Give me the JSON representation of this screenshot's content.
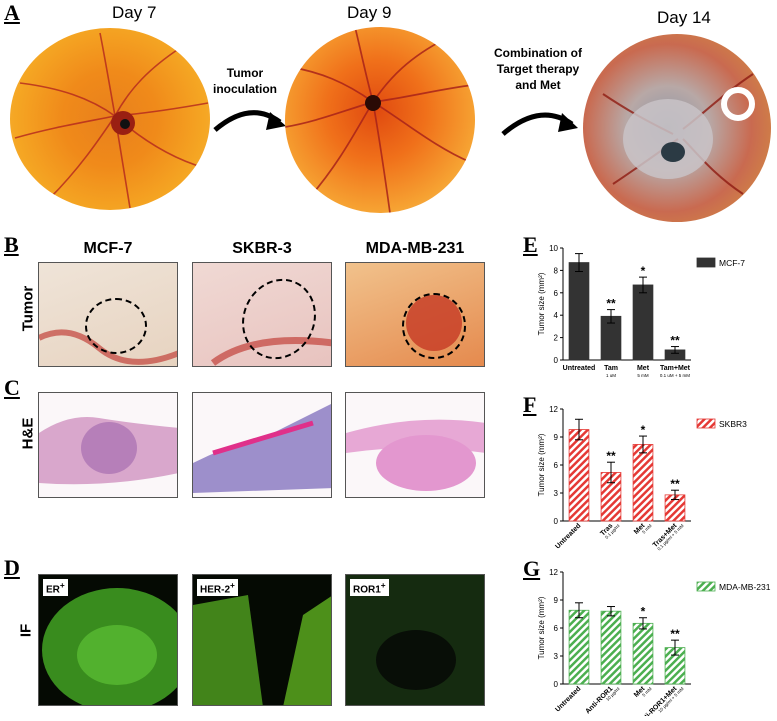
{
  "panels": {
    "A": "A",
    "B": "B",
    "C": "C",
    "D": "D",
    "E": "E",
    "F": "F",
    "G": "G"
  },
  "timeline": {
    "day7": "Day 7",
    "day9": "Day 9",
    "day14": "Day 14",
    "step1": [
      "Tumor",
      "inoculation"
    ],
    "step2": [
      "Combination of",
      "Target therapy",
      "and Met"
    ]
  },
  "grid": {
    "columns": [
      "MCF-7",
      "SKBR-3",
      "MDA-MB-231"
    ],
    "rows": [
      "Tumor",
      "H&E",
      "IF"
    ],
    "if_labels": [
      "ER",
      "HER-2",
      "ROR1"
    ],
    "if_sup": "+"
  },
  "chart_data": [
    {
      "type": "bar",
      "panel": "E",
      "ylabel": "Tumor size (mm²)",
      "ylim": [
        0,
        10
      ],
      "yticks": [
        0,
        2,
        4,
        6,
        8,
        10
      ],
      "categories": [
        "Untreated",
        "Tam",
        "Met",
        "Tam+Met"
      ],
      "sublabels": [
        "",
        "1 uM",
        "5 mM",
        "0.1 uM + 5 mM"
      ],
      "series": [
        {
          "name": "MCF-7",
          "values": [
            8.7,
            3.9,
            6.7,
            0.9
          ],
          "errors": [
            0.8,
            0.6,
            0.7,
            0.3
          ]
        }
      ],
      "significance": [
        "",
        "**",
        "*",
        "**"
      ],
      "color": "#333333",
      "legend": "top-right"
    },
    {
      "type": "bar",
      "panel": "F",
      "ylabel": "Tumor size (mm²)",
      "ylim": [
        0,
        12
      ],
      "yticks": [
        0,
        3,
        6,
        9,
        12
      ],
      "categories": [
        "Untreated",
        "Tras",
        "Met",
        "Tras+Met"
      ],
      "sublabels": [
        "",
        "0.1 µg/ml",
        "5 mM",
        "0.1 µg/ml + 5 mM"
      ],
      "series": [
        {
          "name": "SKBR3",
          "values": [
            9.8,
            5.2,
            8.2,
            2.8
          ],
          "errors": [
            1.1,
            1.1,
            0.9,
            0.5
          ]
        }
      ],
      "significance": [
        "",
        "**",
        "*",
        "**"
      ],
      "color": "#e53935",
      "legend": "top-right"
    },
    {
      "type": "bar",
      "panel": "G",
      "ylabel": "Tumor size (mm²)",
      "ylim": [
        0,
        12
      ],
      "yticks": [
        0,
        3,
        6,
        9,
        12
      ],
      "categories": [
        "Untreated",
        "Anti-ROR1",
        "Met",
        "Anti-ROR1+Met"
      ],
      "sublabels": [
        "",
        "10 µg/ml",
        "5 mM",
        "10 µg/ml + 5 mM"
      ],
      "series": [
        {
          "name": "MDA-MB-231",
          "values": [
            7.9,
            7.8,
            6.5,
            3.9
          ],
          "errors": [
            0.8,
            0.5,
            0.6,
            0.8
          ]
        }
      ],
      "significance": [
        "",
        "",
        "*",
        "**"
      ],
      "color": "#4caf50",
      "legend": "top-right"
    }
  ]
}
